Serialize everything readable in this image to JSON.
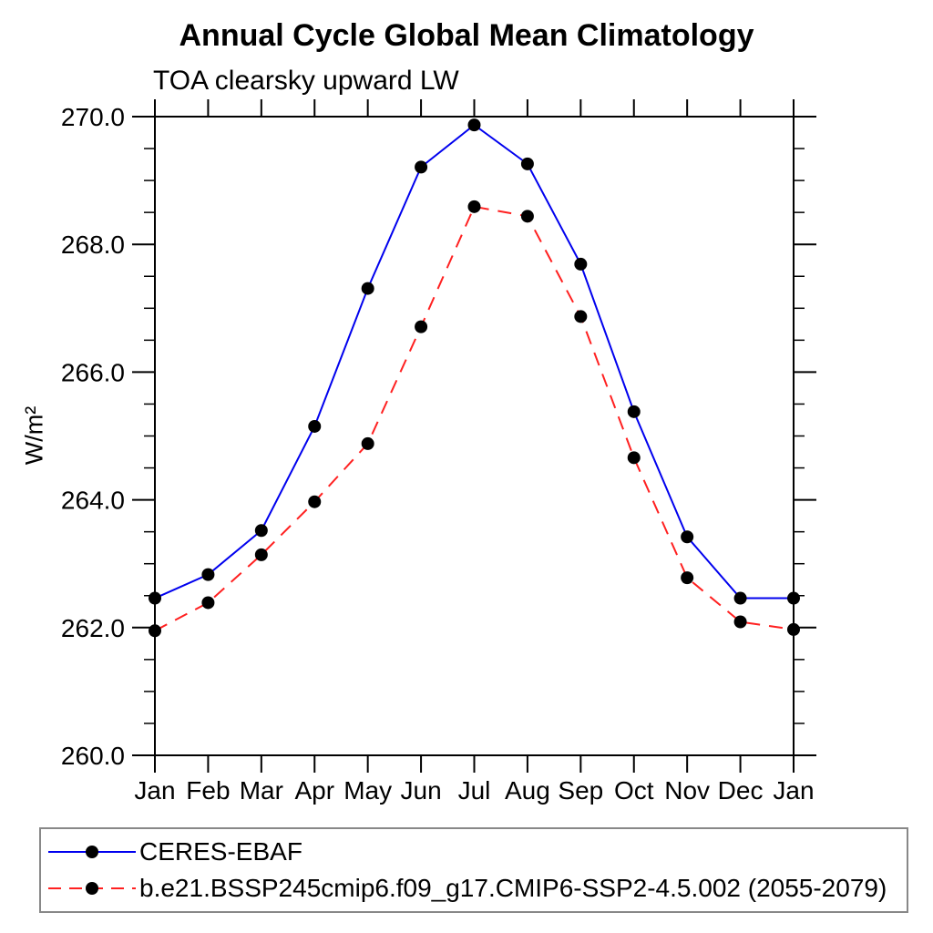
{
  "chart_data": {
    "type": "line",
    "title": "Annual Cycle Global Mean Climatology",
    "subtitle": "TOA clearsky upward LW",
    "ylabel": "W/m²",
    "x_categories": [
      "Jan",
      "Feb",
      "Mar",
      "Apr",
      "May",
      "Jun",
      "Jul",
      "Aug",
      "Sep",
      "Oct",
      "Nov",
      "Dec",
      "Jan"
    ],
    "ylim": [
      260.0,
      270.0
    ],
    "ytick_major": [
      260.0,
      262.0,
      264.0,
      266.0,
      268.0,
      270.0
    ],
    "ytick_labels": [
      "260.0",
      "262.0",
      "264.0",
      "266.0",
      "268.0",
      "270.0"
    ],
    "ytick_minor_step": 0.5,
    "grid": "off",
    "legend_position": "bottom",
    "axis_color": "#000000",
    "marker_color": "#000000",
    "series": [
      {
        "name": "CERES-EBAF",
        "color": "#0000ee",
        "style": "solid",
        "marker": "circle",
        "values": [
          262.46,
          262.83,
          263.52,
          265.15,
          267.31,
          269.21,
          269.87,
          269.26,
          267.69,
          265.38,
          263.42,
          262.46,
          262.46
        ]
      },
      {
        "name": "b.e21.BSSP245cmip6.f09_g17.CMIP6-SSP2-4.5.002 (2055-2079)",
        "color": "#ff2020",
        "style": "dashed",
        "marker": "circle",
        "values": [
          261.95,
          262.39,
          263.14,
          263.97,
          264.88,
          266.71,
          268.59,
          268.44,
          266.87,
          264.66,
          262.78,
          262.09,
          261.97
        ]
      }
    ]
  }
}
